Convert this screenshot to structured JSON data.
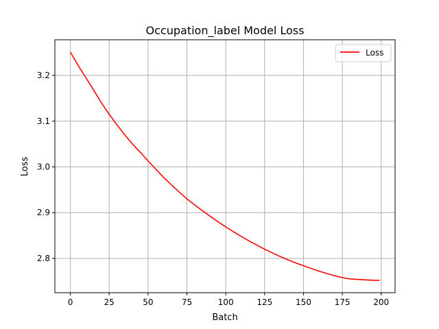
{
  "chart_data": {
    "type": "line",
    "title": "Occupation_label Model Loss",
    "xlabel": "Batch",
    "ylabel": "Loss",
    "xlim": [
      -9.95,
      208.95
    ],
    "ylim": [
      2.725,
      3.278
    ],
    "xticks": [
      0,
      25,
      50,
      75,
      100,
      125,
      150,
      175,
      200
    ],
    "yticks": [
      2.8,
      2.9,
      3.0,
      3.1,
      3.2
    ],
    "grid": true,
    "legend": {
      "position": "top-right"
    },
    "series": [
      {
        "name": "Loss",
        "color": "#ff0000",
        "x": [
          0,
          5,
          10,
          15,
          20,
          25,
          30,
          35,
          40,
          45,
          50,
          55,
          60,
          65,
          70,
          75,
          80,
          85,
          90,
          95,
          100,
          105,
          110,
          115,
          120,
          125,
          130,
          135,
          140,
          145,
          150,
          155,
          160,
          165,
          170,
          175,
          180,
          185,
          190,
          195,
          199
        ],
        "values": [
          3.251,
          3.222,
          3.195,
          3.168,
          3.14,
          3.115,
          3.092,
          3.07,
          3.05,
          3.032,
          3.013,
          2.995,
          2.977,
          2.961,
          2.945,
          2.93,
          2.917,
          2.904,
          2.892,
          2.88,
          2.869,
          2.858,
          2.848,
          2.838,
          2.829,
          2.82,
          2.812,
          2.804,
          2.797,
          2.79,
          2.784,
          2.778,
          2.772,
          2.767,
          2.762,
          2.758,
          2.755,
          2.754,
          2.753,
          2.752,
          2.752
        ]
      }
    ]
  }
}
